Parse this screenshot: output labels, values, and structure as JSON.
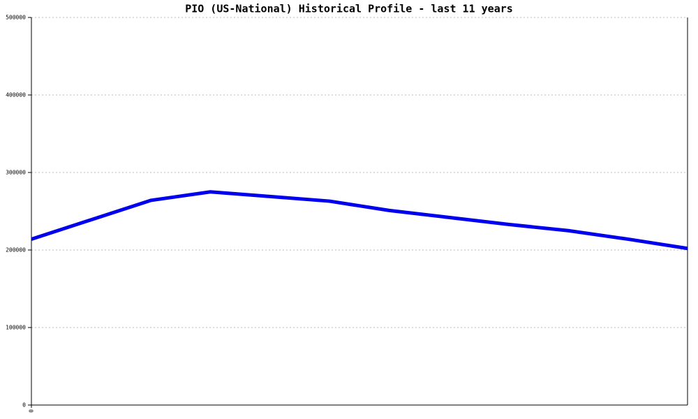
{
  "chart_data": {
    "type": "line",
    "title": "PIO (US-National) Historical Profile - last 11 years",
    "categories": [
      "0",
      null,
      null,
      null,
      null,
      null,
      null,
      null,
      null,
      null,
      null,
      null
    ],
    "series": [
      {
        "color": "#0000ee",
        "values": [
          214000,
          239000,
          264000,
          275000,
          269000,
          263000,
          251000,
          242000,
          233000,
          225000,
          214000,
          202000
        ]
      }
    ],
    "ylim": [
      0,
      500000
    ],
    "yticks": [
      0,
      100000,
      200000,
      300000,
      400000,
      500000
    ],
    "grid": true
  }
}
